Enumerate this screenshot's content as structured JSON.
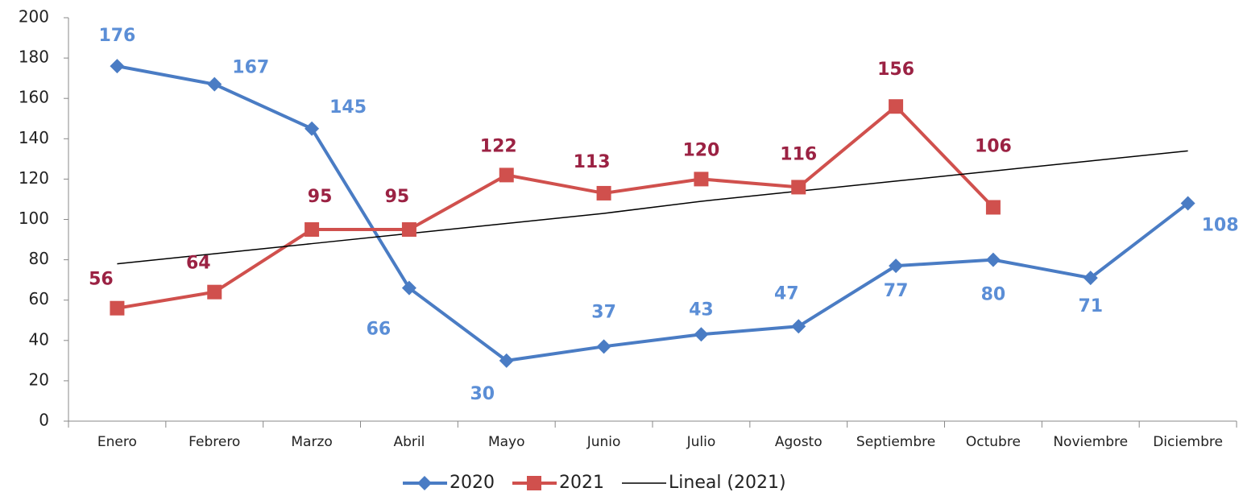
{
  "chart_data": {
    "type": "line",
    "categories": [
      "Enero",
      "Febrero",
      "Marzo",
      "Abril",
      "Mayo",
      "Junio",
      "Julio",
      "Agosto",
      "Septiembre",
      "Octubre",
      "Noviembre",
      "Diciembre"
    ],
    "series": [
      {
        "name": "2020",
        "color": "#4a7cc4",
        "label_color": "#5b8ed6",
        "marker": "diamond",
        "values": [
          176,
          167,
          145,
          66,
          30,
          37,
          43,
          47,
          77,
          80,
          71,
          108
        ]
      },
      {
        "name": "2021",
        "color": "#d0504d",
        "label_color": "#9b2243",
        "marker": "square",
        "values": [
          56,
          64,
          95,
          95,
          122,
          113,
          120,
          116,
          156,
          106,
          null,
          null
        ]
      },
      {
        "name": "Lineal (2021)",
        "color": "#000000",
        "marker": "none",
        "values": [
          78,
          83,
          88,
          93,
          98,
          103,
          109,
          114,
          119,
          124,
          129,
          134
        ]
      }
    ],
    "ylim": [
      0,
      200
    ],
    "yticks": [
      0,
      20,
      40,
      60,
      80,
      100,
      120,
      140,
      160,
      180,
      200
    ],
    "legend": "bottom"
  }
}
